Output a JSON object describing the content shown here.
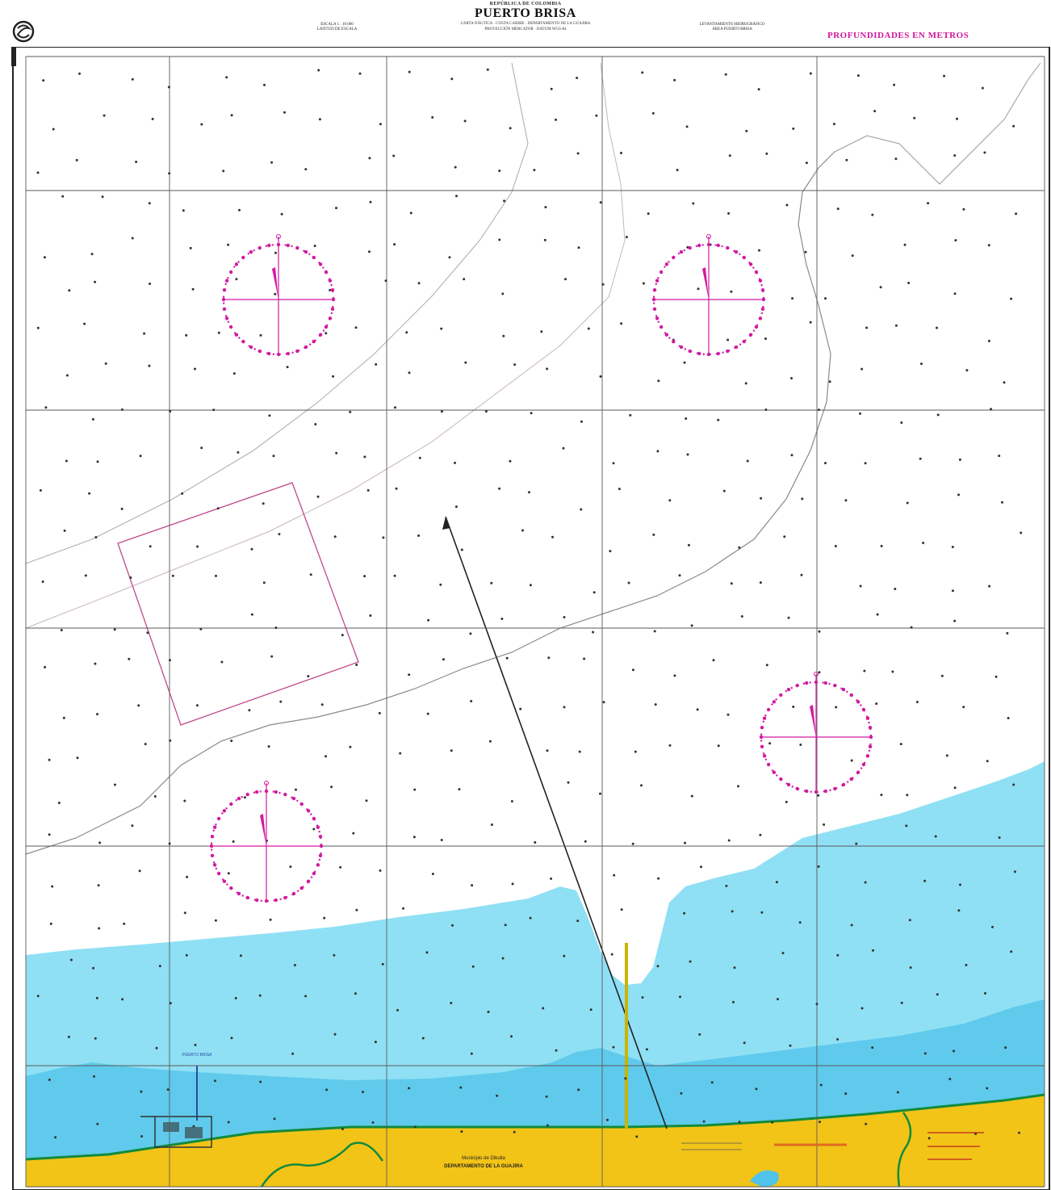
{
  "header": {
    "small_title": "REPÚBLICA DE COLOMBIA",
    "chart_title": "PUERTO BRISA",
    "subtitle_line1": "CARTA NÁUTICA · COSTA CARIBE · DEPARTAMENTO DE LA GUAJIRA",
    "subtitle_line2": "PROYECCIÓN MERCATOR · DATUM WGS-84",
    "left_info_line1": "ESCALA 1 : 10 000",
    "left_info_line2": "LATITUD DE ESCALA",
    "right_info_line1": "LEVANTAMIENTO HIDROGRÁFICO",
    "right_info_line2": "ÁREA PUERTO BRISA",
    "depth_units": "PROFUNDIDADES EN METROS"
  },
  "map": {
    "colors": {
      "land": "#f2c418",
      "shallow_water": "#8fe0f4",
      "deeper_shallow_water": "#4fc3ea",
      "deep_water": "#ffffff",
      "compass": "#d21aa0",
      "grid": "#5a5a5a",
      "coast_outline": "#138a3a",
      "contour": "#8a8a8a",
      "lead_line": "#222222",
      "pier": "#c9b400"
    },
    "compass_roses": [
      {
        "name": "compass-rose-northwest",
        "icon": "compass-rose-icon"
      },
      {
        "name": "compass-rose-northeast",
        "icon": "compass-rose-icon"
      },
      {
        "name": "compass-rose-southeast",
        "icon": "compass-rose-icon"
      },
      {
        "name": "compass-rose-southwest",
        "icon": "compass-rose-icon"
      }
    ],
    "land_labels": {
      "municipality": "Municipio de Dibulla",
      "department": "DEPARTAMENTO DE LA GUAJIRA"
    },
    "harbor_marker": "PUERTO BRISA"
  }
}
